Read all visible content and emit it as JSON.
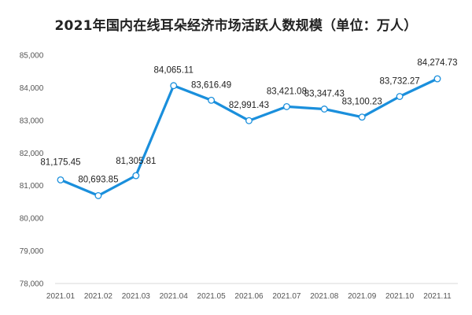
{
  "chart_data": {
    "type": "line",
    "title": "2021年国内在线耳朵经济市场活跃人数规模（单位：万人）",
    "xlabel": "",
    "ylabel": "",
    "categories": [
      "2021.01",
      "2021.02",
      "2021.03",
      "2021.04",
      "2021.05",
      "2021.06",
      "2021.07",
      "2021.08",
      "2021.09",
      "2021.10",
      "2021.11"
    ],
    "series": [
      {
        "values": [
          81175.45,
          80693.85,
          81305.81,
          84065.11,
          83616.49,
          82991.43,
          83421.08,
          83347.43,
          83100.23,
          83732.27,
          84274.73
        ],
        "value_labels": [
          "81,175.45",
          "80,693.85",
          "81,305.81",
          "84,065.11",
          "83,616.49",
          "82,991.43",
          "83,421.08",
          "83,347.43",
          "83,100.23",
          "83,732.27",
          "84,274.73"
        ],
        "color": "#1a8fdc",
        "marker_fill": "#ffffff"
      }
    ],
    "ylim": [
      78000,
      85000
    ],
    "yticks": [
      78000,
      79000,
      80000,
      81000,
      82000,
      83000,
      84000,
      85000
    ],
    "ytick_labels": [
      "78,000",
      "79,000",
      "80,000",
      "81,000",
      "82,000",
      "83,000",
      "84,000",
      "85,000"
    ],
    "grid": false,
    "legend": "none",
    "axis_color": "#d9d9d9"
  }
}
